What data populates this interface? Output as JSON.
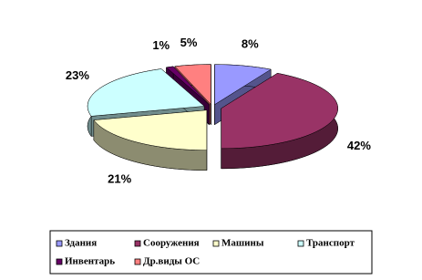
{
  "chart_data": {
    "type": "pie",
    "categories": [
      "Здания",
      "Сооружения",
      "Машины",
      "Транспорт",
      "Инвентарь",
      "Др.виды ОС"
    ],
    "values": [
      8,
      42,
      21,
      23,
      1,
      5
    ],
    "value_labels": [
      "8%",
      "42%",
      "21%",
      "23%",
      "1%",
      "5%"
    ],
    "colors": [
      "#9999ff",
      "#993366",
      "#ffffcc",
      "#ccffff",
      "#660066",
      "#ff8080"
    ],
    "legend": "bottom"
  }
}
